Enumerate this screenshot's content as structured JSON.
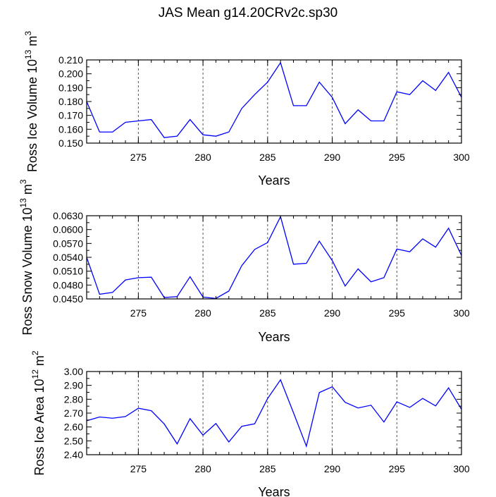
{
  "title": "JAS Mean g14.20CRv2c.sp30",
  "line_color": "#0000ff",
  "grid_color": "#555555",
  "chart_data": [
    {
      "type": "line",
      "id": "ice-volume",
      "title": "",
      "xlabel": "Years",
      "ylabel": {
        "main": "Ross Ice Volume 10",
        "exp": "13",
        "unit": " m",
        "unit_exp": "3"
      },
      "xlim": [
        271,
        300
      ],
      "ylim": [
        0.15,
        0.21
      ],
      "xticks": [
        275,
        280,
        285,
        290,
        295,
        300
      ],
      "xtick_labels": [
        "275",
        "280",
        "285",
        "290",
        "295",
        "300"
      ],
      "yticks": [
        0.15,
        0.16,
        0.17,
        0.18,
        0.19,
        0.2,
        0.21
      ],
      "ytick_labels": [
        "0.150",
        "0.160",
        "0.170",
        "0.180",
        "0.190",
        "0.200",
        "0.210"
      ],
      "grid_x": [
        275,
        280,
        285,
        290,
        295
      ],
      "x": [
        271,
        272,
        273,
        274,
        275,
        276,
        277,
        278,
        279,
        280,
        281,
        282,
        283,
        284,
        285,
        286,
        287,
        288,
        289,
        290,
        291,
        292,
        293,
        294,
        295,
        296,
        297,
        298,
        299,
        300
      ],
      "values": [
        0.18,
        0.158,
        0.158,
        0.165,
        0.166,
        0.167,
        0.154,
        0.155,
        0.167,
        0.156,
        0.155,
        0.158,
        0.175,
        0.185,
        0.194,
        0.208,
        0.177,
        0.177,
        0.194,
        0.183,
        0.164,
        0.174,
        0.166,
        0.166,
        0.187,
        0.185,
        0.195,
        0.188,
        0.201,
        0.183
      ]
    },
    {
      "type": "line",
      "id": "snow-volume",
      "title": "",
      "xlabel": "Years",
      "ylabel": {
        "main": "Ross Snow Volume 10",
        "exp": "13",
        "unit": " m",
        "unit_exp": "3"
      },
      "xlim": [
        271,
        300
      ],
      "ylim": [
        0.045,
        0.063
      ],
      "xticks": [
        275,
        280,
        285,
        290,
        295,
        300
      ],
      "xtick_labels": [
        "275",
        "280",
        "285",
        "290",
        "295",
        "300"
      ],
      "yticks": [
        0.045,
        0.048,
        0.051,
        0.054,
        0.057,
        0.06,
        0.063
      ],
      "ytick_labels": [
        "0.0450",
        "0.0480",
        "0.0510",
        "0.0540",
        "0.0570",
        "0.0600",
        "0.0630"
      ],
      "grid_x": [
        275,
        280,
        285,
        290,
        295
      ],
      "x": [
        271,
        272,
        273,
        274,
        275,
        276,
        277,
        278,
        279,
        280,
        281,
        282,
        283,
        284,
        285,
        286,
        287,
        288,
        289,
        290,
        291,
        292,
        293,
        294,
        295,
        296,
        297,
        298,
        299,
        300
      ],
      "values": [
        0.054,
        0.046,
        0.0464,
        0.0491,
        0.0496,
        0.0497,
        0.0453,
        0.0455,
        0.0498,
        0.0454,
        0.0451,
        0.0467,
        0.0522,
        0.0557,
        0.0572,
        0.0628,
        0.0525,
        0.0527,
        0.0575,
        0.0533,
        0.0478,
        0.0515,
        0.0487,
        0.0496,
        0.0558,
        0.0552,
        0.058,
        0.0562,
        0.0603,
        0.0544
      ]
    },
    {
      "type": "line",
      "id": "ice-area",
      "title": "",
      "xlabel": "Years",
      "ylabel": {
        "main": "Ross Ice Area 10",
        "exp": "12",
        "unit": " m",
        "unit_exp": "2"
      },
      "xlim": [
        271,
        300
      ],
      "ylim": [
        2.4,
        3.0
      ],
      "xticks": [
        275,
        280,
        285,
        290,
        295,
        300
      ],
      "xtick_labels": [
        "275",
        "280",
        "285",
        "290",
        "295",
        "300"
      ],
      "yticks": [
        2.4,
        2.5,
        2.6,
        2.7,
        2.8,
        2.9,
        3.0
      ],
      "ytick_labels": [
        "2.40",
        "2.50",
        "2.60",
        "2.70",
        "2.80",
        "2.90",
        "3.00"
      ],
      "grid_x": [
        275,
        280,
        285,
        290,
        295
      ],
      "x": [
        271,
        272,
        273,
        274,
        275,
        276,
        277,
        278,
        279,
        280,
        281,
        282,
        283,
        284,
        285,
        286,
        287,
        288,
        289,
        290,
        291,
        292,
        293,
        294,
        295,
        296,
        297,
        298,
        299,
        300
      ],
      "values": [
        2.645,
        2.672,
        2.663,
        2.675,
        2.735,
        2.717,
        2.622,
        2.478,
        2.66,
        2.541,
        2.625,
        2.492,
        2.605,
        2.623,
        2.805,
        2.94,
        2.703,
        2.461,
        2.848,
        2.89,
        2.778,
        2.737,
        2.757,
        2.636,
        2.781,
        2.741,
        2.806,
        2.752,
        2.882,
        2.728
      ]
    }
  ]
}
